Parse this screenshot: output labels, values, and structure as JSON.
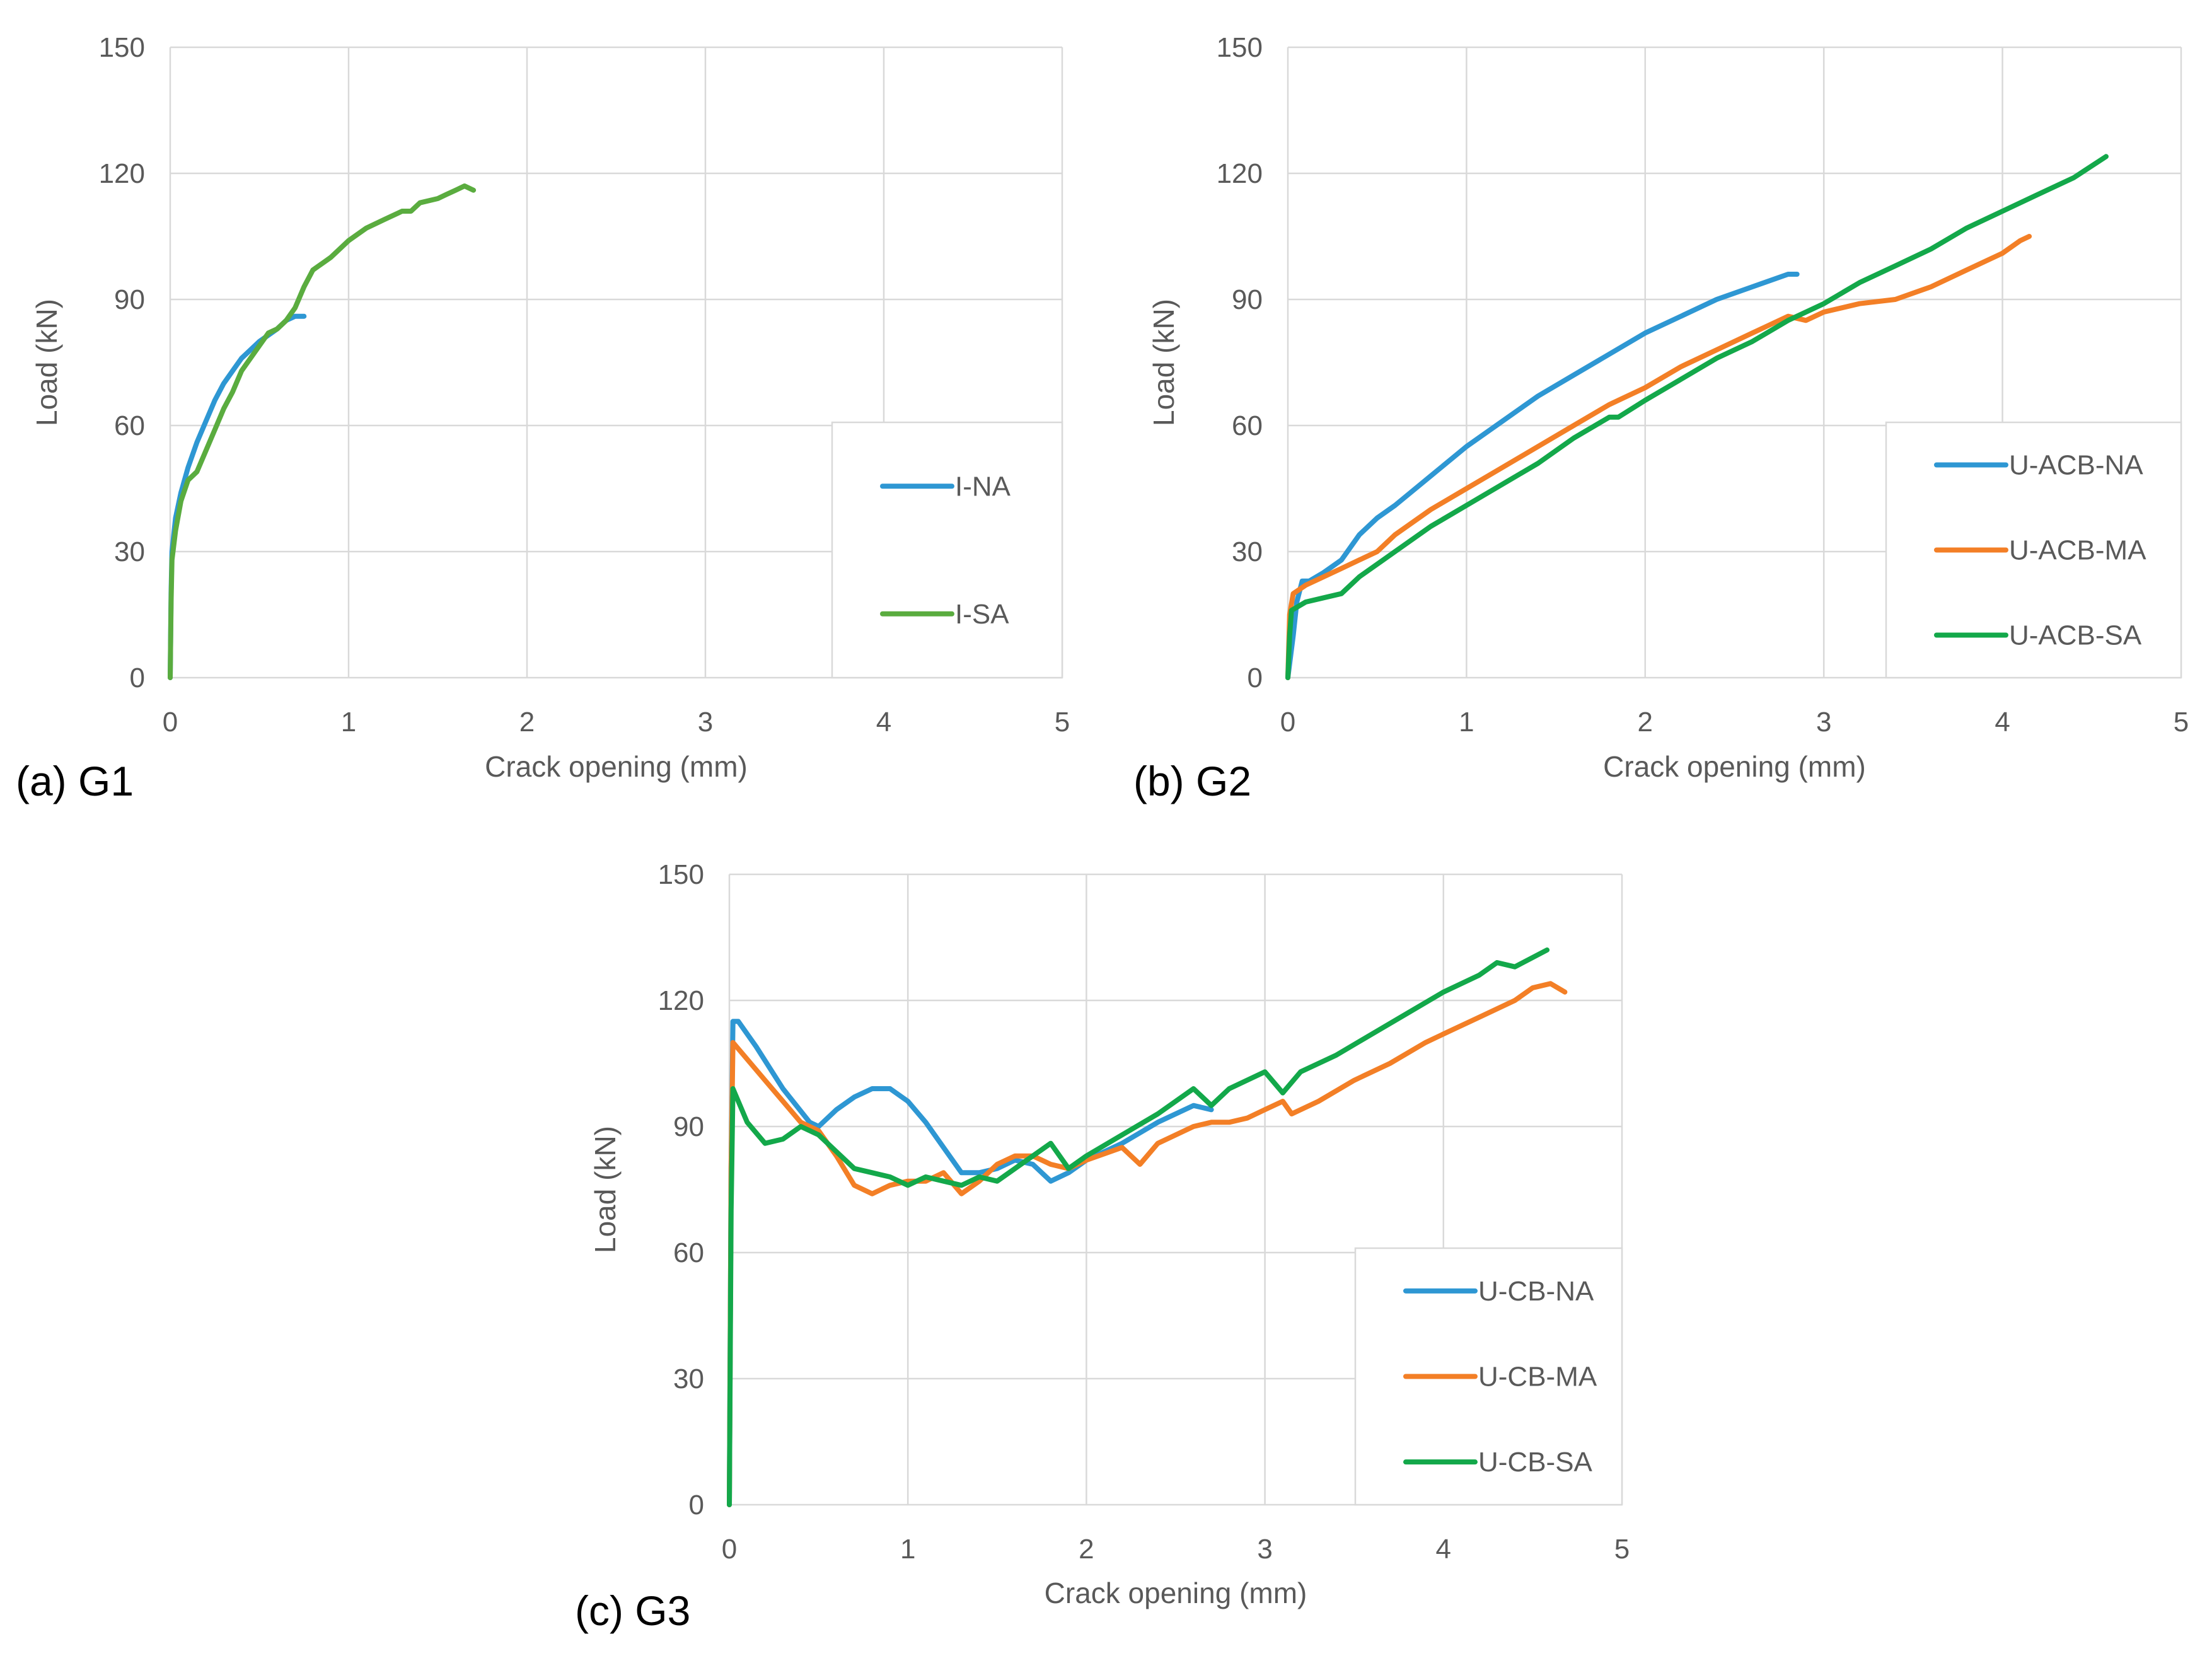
{
  "colors": {
    "NA": "#2e97d3",
    "MA": "#f37f26",
    "SA_G1": "#5aac3f",
    "SA": "#13a84a",
    "grid": "#d9d9d9",
    "text": "#595959"
  },
  "chart_data": [
    {
      "panel_label": "(a) G1",
      "type": "line",
      "xlabel": "Crack opening (mm)",
      "ylabel": "Load (kN)",
      "xlim": [
        0,
        5
      ],
      "ylim": [
        0,
        150
      ],
      "x_ticks": [
        0,
        1,
        2,
        3,
        4,
        5
      ],
      "y_ticks": [
        0,
        30,
        60,
        90,
        120,
        150
      ],
      "legend_position": "right-bottom",
      "series": [
        {
          "name": "I-NA",
          "color_key": "NA",
          "points": [
            [
              0,
              0
            ],
            [
              0.005,
              20
            ],
            [
              0.01,
              30
            ],
            [
              0.03,
              38
            ],
            [
              0.06,
              44
            ],
            [
              0.1,
              50
            ],
            [
              0.15,
              56
            ],
            [
              0.2,
              61
            ],
            [
              0.25,
              66
            ],
            [
              0.3,
              70
            ],
            [
              0.35,
              73
            ],
            [
              0.4,
              76
            ],
            [
              0.5,
              80
            ],
            [
              0.6,
              83
            ],
            [
              0.65,
              85
            ],
            [
              0.7,
              86
            ],
            [
              0.75,
              86
            ]
          ]
        },
        {
          "name": "I-SA",
          "color_key": "SA_G1",
          "points": [
            [
              0,
              0
            ],
            [
              0.005,
              18
            ],
            [
              0.01,
              28
            ],
            [
              0.03,
              35
            ],
            [
              0.06,
              42
            ],
            [
              0.1,
              47
            ],
            [
              0.15,
              49
            ],
            [
              0.2,
              54
            ],
            [
              0.25,
              59
            ],
            [
              0.3,
              64
            ],
            [
              0.35,
              68
            ],
            [
              0.4,
              73
            ],
            [
              0.5,
              79
            ],
            [
              0.55,
              82
            ],
            [
              0.6,
              83
            ],
            [
              0.65,
              85
            ],
            [
              0.7,
              88
            ],
            [
              0.75,
              93
            ],
            [
              0.8,
              97
            ],
            [
              0.9,
              100
            ],
            [
              1.0,
              104
            ],
            [
              1.1,
              107
            ],
            [
              1.2,
              109
            ],
            [
              1.3,
              111
            ],
            [
              1.35,
              111
            ],
            [
              1.4,
              113
            ],
            [
              1.5,
              114
            ],
            [
              1.55,
              115
            ],
            [
              1.6,
              116
            ],
            [
              1.65,
              117
            ],
            [
              1.7,
              116
            ]
          ]
        }
      ]
    },
    {
      "panel_label": "(b) G2",
      "type": "line",
      "xlabel": "Crack opening (mm)",
      "ylabel": "Load (kN)",
      "xlim": [
        0,
        5
      ],
      "ylim": [
        0,
        150
      ],
      "x_ticks": [
        0,
        1,
        2,
        3,
        4,
        5
      ],
      "y_ticks": [
        0,
        30,
        60,
        90,
        120,
        150
      ],
      "legend_position": "right-bottom",
      "series": [
        {
          "name": "U-ACB-NA",
          "color_key": "NA",
          "points": [
            [
              0,
              0
            ],
            [
              0.03,
              10
            ],
            [
              0.05,
              18
            ],
            [
              0.08,
              23
            ],
            [
              0.12,
              23
            ],
            [
              0.2,
              25
            ],
            [
              0.3,
              28
            ],
            [
              0.4,
              34
            ],
            [
              0.5,
              38
            ],
            [
              0.6,
              41
            ],
            [
              0.8,
              48
            ],
            [
              1.0,
              55
            ],
            [
              1.2,
              61
            ],
            [
              1.4,
              67
            ],
            [
              1.6,
              72
            ],
            [
              1.8,
              77
            ],
            [
              2.0,
              82
            ],
            [
              2.2,
              86
            ],
            [
              2.4,
              90
            ],
            [
              2.6,
              93
            ],
            [
              2.8,
              96
            ],
            [
              2.85,
              96
            ]
          ]
        },
        {
          "name": "U-ACB-MA",
          "color_key": "MA",
          "points": [
            [
              0,
              0
            ],
            [
              0.01,
              15
            ],
            [
              0.03,
              20
            ],
            [
              0.1,
              22
            ],
            [
              0.2,
              24
            ],
            [
              0.3,
              26
            ],
            [
              0.4,
              28
            ],
            [
              0.5,
              30
            ],
            [
              0.6,
              34
            ],
            [
              0.8,
              40
            ],
            [
              1.0,
              45
            ],
            [
              1.2,
              50
            ],
            [
              1.4,
              55
            ],
            [
              1.6,
              60
            ],
            [
              1.8,
              65
            ],
            [
              2.0,
              69
            ],
            [
              2.2,
              74
            ],
            [
              2.4,
              78
            ],
            [
              2.6,
              82
            ],
            [
              2.8,
              86
            ],
            [
              2.9,
              85
            ],
            [
              3.0,
              87
            ],
            [
              3.2,
              89
            ],
            [
              3.4,
              90
            ],
            [
              3.6,
              93
            ],
            [
              3.8,
              97
            ],
            [
              4.0,
              101
            ],
            [
              4.1,
              104
            ],
            [
              4.15,
              105
            ]
          ]
        },
        {
          "name": "U-ACB-SA",
          "color_key": "SA",
          "points": [
            [
              0,
              0
            ],
            [
              0.01,
              10
            ],
            [
              0.02,
              16
            ],
            [
              0.1,
              18
            ],
            [
              0.2,
              19
            ],
            [
              0.3,
              20
            ],
            [
              0.4,
              24
            ],
            [
              0.6,
              30
            ],
            [
              0.8,
              36
            ],
            [
              1.0,
              41
            ],
            [
              1.2,
              46
            ],
            [
              1.4,
              51
            ],
            [
              1.6,
              57
            ],
            [
              1.8,
              62
            ],
            [
              1.85,
              62
            ],
            [
              2.0,
              66
            ],
            [
              2.2,
              71
            ],
            [
              2.4,
              76
            ],
            [
              2.6,
              80
            ],
            [
              2.8,
              85
            ],
            [
              3.0,
              89
            ],
            [
              3.2,
              94
            ],
            [
              3.4,
              98
            ],
            [
              3.6,
              102
            ],
            [
              3.8,
              107
            ],
            [
              4.0,
              111
            ],
            [
              4.2,
              115
            ],
            [
              4.4,
              119
            ],
            [
              4.58,
              124
            ]
          ]
        }
      ]
    },
    {
      "panel_label": "(c) G3",
      "type": "line",
      "xlabel": "Crack opening (mm)",
      "ylabel": "Load (kN)",
      "xlim": [
        0,
        5
      ],
      "ylim": [
        0,
        150
      ],
      "x_ticks": [
        0,
        1,
        2,
        3,
        4,
        5
      ],
      "y_ticks": [
        0,
        30,
        60,
        90,
        120,
        150
      ],
      "legend_position": "right-bottom",
      "series": [
        {
          "name": "U-CB-NA",
          "color_key": "NA",
          "points": [
            [
              0,
              0
            ],
            [
              0.01,
              80
            ],
            [
              0.02,
              115
            ],
            [
              0.05,
              115
            ],
            [
              0.15,
              109
            ],
            [
              0.3,
              99
            ],
            [
              0.45,
              91
            ],
            [
              0.5,
              90
            ],
            [
              0.6,
              94
            ],
            [
              0.7,
              97
            ],
            [
              0.8,
              99
            ],
            [
              0.9,
              99
            ],
            [
              1.0,
              96
            ],
            [
              1.1,
              91
            ],
            [
              1.2,
              85
            ],
            [
              1.3,
              79
            ],
            [
              1.4,
              79
            ],
            [
              1.5,
              80
            ],
            [
              1.6,
              82
            ],
            [
              1.7,
              81
            ],
            [
              1.8,
              77
            ],
            [
              1.9,
              79
            ],
            [
              2.0,
              82
            ],
            [
              2.2,
              86
            ],
            [
              2.4,
              91
            ],
            [
              2.6,
              95
            ],
            [
              2.7,
              94
            ]
          ]
        },
        {
          "name": "U-CB-MA",
          "color_key": "MA",
          "points": [
            [
              0,
              0
            ],
            [
              0.01,
              80
            ],
            [
              0.02,
              110
            ],
            [
              0.1,
              106
            ],
            [
              0.2,
              101
            ],
            [
              0.3,
              96
            ],
            [
              0.4,
              91
            ],
            [
              0.5,
              89
            ],
            [
              0.6,
              83
            ],
            [
              0.7,
              76
            ],
            [
              0.8,
              74
            ],
            [
              0.9,
              76
            ],
            [
              1.0,
              77
            ],
            [
              1.1,
              77
            ],
            [
              1.2,
              79
            ],
            [
              1.3,
              74
            ],
            [
              1.4,
              77
            ],
            [
              1.5,
              81
            ],
            [
              1.6,
              83
            ],
            [
              1.7,
              83
            ],
            [
              1.8,
              81
            ],
            [
              1.9,
              80
            ],
            [
              2.0,
              82
            ],
            [
              2.2,
              85
            ],
            [
              2.3,
              81
            ],
            [
              2.4,
              86
            ],
            [
              2.6,
              90
            ],
            [
              2.7,
              91
            ],
            [
              2.8,
              91
            ],
            [
              2.9,
              92
            ],
            [
              3.0,
              94
            ],
            [
              3.1,
              96
            ],
            [
              3.15,
              93
            ],
            [
              3.3,
              96
            ],
            [
              3.5,
              101
            ],
            [
              3.7,
              105
            ],
            [
              3.9,
              110
            ],
            [
              4.0,
              112
            ],
            [
              4.2,
              116
            ],
            [
              4.4,
              120
            ],
            [
              4.5,
              123
            ],
            [
              4.6,
              124
            ],
            [
              4.68,
              122
            ]
          ]
        },
        {
          "name": "U-CB-SA",
          "color_key": "SA",
          "points": [
            [
              0,
              0
            ],
            [
              0.01,
              70
            ],
            [
              0.02,
              99
            ],
            [
              0.1,
              91
            ],
            [
              0.2,
              86
            ],
            [
              0.3,
              87
            ],
            [
              0.4,
              90
            ],
            [
              0.5,
              88
            ],
            [
              0.6,
              84
            ],
            [
              0.7,
              80
            ],
            [
              0.8,
              79
            ],
            [
              0.9,
              78
            ],
            [
              1.0,
              76
            ],
            [
              1.1,
              78
            ],
            [
              1.2,
              77
            ],
            [
              1.3,
              76
            ],
            [
              1.4,
              78
            ],
            [
              1.5,
              77
            ],
            [
              1.6,
              80
            ],
            [
              1.7,
              83
            ],
            [
              1.8,
              86
            ],
            [
              1.9,
              80
            ],
            [
              2.0,
              83
            ],
            [
              2.2,
              88
            ],
            [
              2.4,
              93
            ],
            [
              2.6,
              99
            ],
            [
              2.7,
              95
            ],
            [
              2.8,
              99
            ],
            [
              3.0,
              103
            ],
            [
              3.1,
              98
            ],
            [
              3.2,
              103
            ],
            [
              3.4,
              107
            ],
            [
              3.6,
              112
            ],
            [
              3.8,
              117
            ],
            [
              4.0,
              122
            ],
            [
              4.2,
              126
            ],
            [
              4.3,
              129
            ],
            [
              4.4,
              128
            ],
            [
              4.58,
              132
            ]
          ]
        }
      ]
    }
  ]
}
